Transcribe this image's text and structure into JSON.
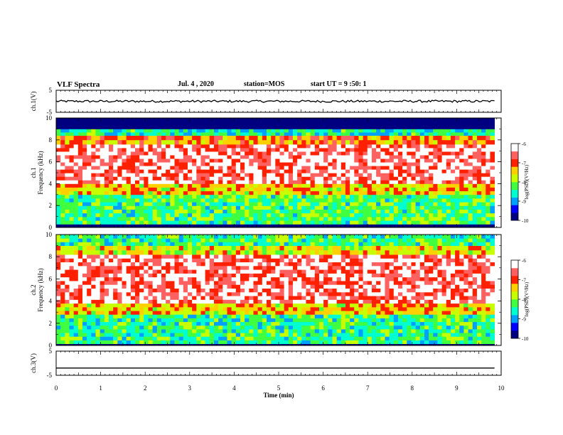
{
  "header": {
    "title": "VLF Spectra",
    "date": "Jul. 4 , 2020",
    "station": "station=MOS",
    "start_ut": "start UT = 9 :50: 1"
  },
  "colors": {
    "spectrogram_scale": [
      "#000080",
      "#0000ff",
      "#00a0ff",
      "#00ffd0",
      "#40ff40",
      "#c8ff00",
      "#ffd000",
      "#ff2000",
      "#ff6060",
      "#ffffff"
    ],
    "saturated": "#000000",
    "line": "#000000"
  },
  "chart_data": [
    {
      "type": "line",
      "panel": "ch1-waveform",
      "ylabel": "ch.1(V)",
      "ylim": [
        -5,
        5
      ],
      "yticks": [
        "5",
        "-5"
      ],
      "series": [
        {
          "x": [
            0,
            9.85
          ],
          "values": [
            0,
            0
          ]
        }
      ]
    },
    {
      "type": "heatmap",
      "panel": "ch1-spectrogram",
      "ylabel": [
        "ch.1",
        "Frequency (kHz)"
      ],
      "ylim": [
        0,
        10
      ],
      "yticks": [
        "0",
        "2",
        "4",
        "6",
        "8",
        "10"
      ],
      "x_range_min": [
        0,
        9.85
      ],
      "colorbar": {
        "label": "log(PSD)(V²/Hz)",
        "range": [
          -10,
          -6
        ],
        "ticks": [
          "-6",
          "-7",
          "-8",
          "-9",
          "-10"
        ]
      },
      "bands": [
        {
          "from_khz": 0.0,
          "to_khz": 0.3,
          "log_psd": -10
        },
        {
          "from_khz": 0.3,
          "to_khz": 3.0,
          "log_psd": -8.3
        },
        {
          "from_khz": 3.0,
          "to_khz": 4.0,
          "log_psd": -7.4
        },
        {
          "from_khz": 4.0,
          "to_khz": 7.6,
          "log_psd": -6.4
        },
        {
          "from_khz": 7.6,
          "to_khz": 8.4,
          "log_psd": -7.1
        },
        {
          "from_khz": 8.4,
          "to_khz": 9.0,
          "log_psd": -8.6
        },
        {
          "from_khz": 9.0,
          "to_khz": 10.0,
          "log_psd": -10
        }
      ]
    },
    {
      "type": "heatmap",
      "panel": "ch2-spectrogram",
      "ylabel": [
        "ch.2",
        "Frequency (kHz)"
      ],
      "ylim": [
        0,
        10
      ],
      "yticks": [
        "0",
        "2",
        "4",
        "6",
        "8",
        "10"
      ],
      "x_range_min": [
        0,
        9.85
      ],
      "colorbar": {
        "label": "log(PSD)(V²/Hz)",
        "range": [
          -10,
          -6
        ],
        "ticks": [
          "-6",
          "-7",
          "-8",
          "-9",
          "-10"
        ]
      },
      "bands": [
        {
          "from_khz": 0.0,
          "to_khz": 0.15,
          "log_psd": -10
        },
        {
          "from_khz": 0.15,
          "to_khz": 2.8,
          "log_psd": -8.4
        },
        {
          "from_khz": 2.8,
          "to_khz": 3.8,
          "log_psd": -7.4
        },
        {
          "from_khz": 3.8,
          "to_khz": 8.2,
          "log_psd": -6.4
        },
        {
          "from_khz": 8.2,
          "to_khz": 9.0,
          "log_psd": -7.6
        },
        {
          "from_khz": 9.0,
          "to_khz": 10.0,
          "log_psd": -8.4
        }
      ]
    },
    {
      "type": "line",
      "panel": "ch3-waveform",
      "ylabel": "ch.3(V)",
      "ylim": [
        -5,
        5
      ],
      "yticks": [
        "5",
        "-5"
      ],
      "series": [
        {
          "x": [
            0,
            9.85
          ],
          "values": [
            -2,
            -2
          ]
        }
      ]
    }
  ],
  "xaxis": {
    "label": "Time (min)",
    "range": [
      0,
      10
    ],
    "ticks": [
      "0",
      "1",
      "2",
      "3",
      "4",
      "5",
      "6",
      "7",
      "8",
      "9",
      "10"
    ]
  }
}
